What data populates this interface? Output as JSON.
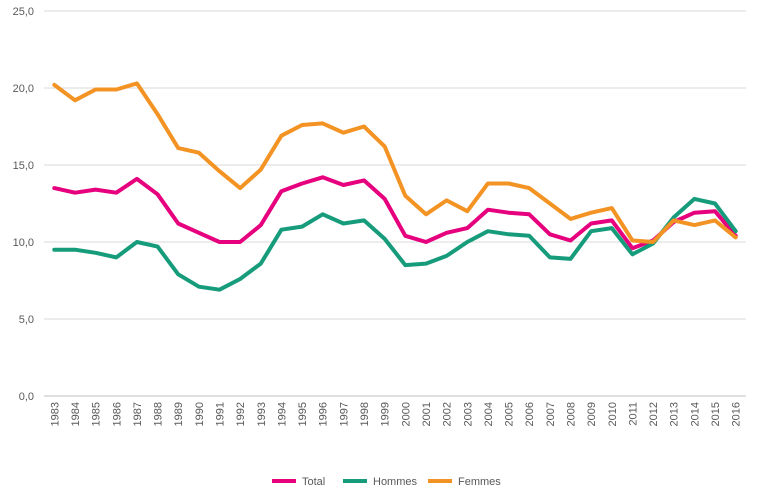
{
  "chart_data": {
    "type": "line",
    "title": "",
    "xlabel": "",
    "ylabel": "",
    "ylim": [
      0,
      25
    ],
    "y_ticks": [
      "0,0",
      "5,0",
      "10,0",
      "15,0",
      "20,0",
      "25,0"
    ],
    "grid": "horizontal",
    "legend_position": "bottom",
    "x": [
      "1983",
      "1984",
      "1985",
      "1986",
      "1987",
      "1988",
      "1989",
      "1990",
      "1991",
      "1992",
      "1993",
      "1994",
      "1995",
      "1996",
      "1997",
      "1998",
      "1999",
      "2000",
      "2001",
      "2002",
      "2003",
      "2004",
      "2005",
      "2006",
      "2007",
      "2008",
      "2009",
      "2010",
      "2011",
      "2012",
      "2013",
      "2014",
      "2015",
      "2016"
    ],
    "series": [
      {
        "name": "Total",
        "color": "#e6007e",
        "values": [
          13.5,
          13.2,
          13.4,
          13.2,
          14.1,
          13.1,
          11.2,
          10.6,
          10.0,
          10.0,
          11.1,
          13.3,
          13.8,
          14.2,
          13.7,
          14.0,
          12.8,
          10.4,
          10.0,
          10.6,
          10.9,
          12.1,
          11.9,
          11.8,
          10.5,
          10.1,
          11.2,
          11.4,
          9.6,
          10.1,
          11.3,
          11.9,
          12.0,
          10.4
        ]
      },
      {
        "name": "Hommes",
        "color": "#169b7b",
        "values": [
          9.5,
          9.5,
          9.3,
          9.0,
          10.0,
          9.7,
          7.9,
          7.1,
          6.9,
          7.6,
          8.6,
          10.8,
          11.0,
          11.8,
          11.2,
          11.4,
          10.2,
          8.5,
          8.6,
          9.1,
          10.0,
          10.7,
          10.5,
          10.4,
          9.0,
          8.9,
          10.7,
          10.9,
          9.2,
          9.9,
          11.6,
          12.8,
          12.5,
          10.7
        ]
      },
      {
        "name": "Femmes",
        "color": "#f39324",
        "values": [
          20.2,
          19.2,
          19.9,
          19.9,
          20.3,
          18.3,
          16.1,
          15.8,
          14.6,
          13.5,
          14.7,
          16.9,
          17.6,
          17.7,
          17.1,
          17.5,
          16.2,
          13.0,
          11.8,
          12.7,
          12.0,
          13.8,
          13.8,
          13.5,
          12.5,
          11.5,
          11.9,
          12.2,
          10.1,
          10.0,
          11.4,
          11.1,
          11.4,
          10.3
        ]
      }
    ]
  }
}
